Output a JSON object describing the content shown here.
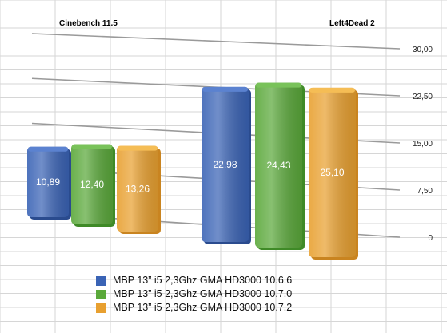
{
  "chart_data": {
    "type": "bar",
    "categories": [
      "Cinebench 11.5",
      "Left4Dead 2"
    ],
    "series": [
      {
        "name": "MBP 13” i5 2,3Ghz GMA HD3000 10.6.6",
        "color": "#3a63b5",
        "values": [
          10.89,
          22.98
        ],
        "labels": [
          "10,89",
          "22,98"
        ]
      },
      {
        "name": "MBP 13” i5 2,3Ghz GMA HD3000 10.7.0",
        "color": "#5aa83a",
        "values": [
          12.4,
          24.43
        ],
        "labels": [
          "12,40",
          "24,43"
        ]
      },
      {
        "name": "MBP 13” i5 2,3Ghz GMA HD3000 10.7.2",
        "color": "#e8a030",
        "values": [
          13.26,
          25.1
        ],
        "labels": [
          "13,26",
          "25,10"
        ]
      }
    ],
    "ylim": [
      0,
      30
    ],
    "yticks": [
      0,
      7.5,
      15,
      22.5,
      30
    ],
    "ytick_labels": [
      "0",
      "7,50",
      "15,00",
      "22,50",
      "30,00"
    ],
    "grid": true,
    "legend": "bottom"
  }
}
